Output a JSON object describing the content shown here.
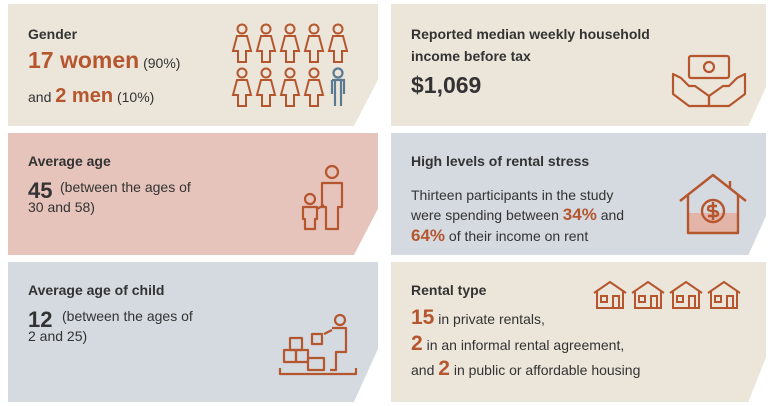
{
  "gender": {
    "label": "Gender",
    "women_count": "17 women",
    "women_pct": "(90%)",
    "and": "and",
    "men_count": "2 men",
    "men_pct": "(10%)"
  },
  "income": {
    "label_line1": "Reported median weekly household",
    "label_line2": "income before tax",
    "value": "$1,069"
  },
  "age": {
    "label": "Average age",
    "value": "45",
    "range_line1": "(between the ages of",
    "range_line2": "30 and 58)"
  },
  "stress": {
    "label": "High levels of rental stress",
    "line1": "Thirteen participants in the study",
    "line2_pre": "were spending between",
    "pct_low": "34%",
    "line2_post": "and",
    "pct_high": "64%",
    "line3_post": "of their income on rent"
  },
  "child_age": {
    "label": "Average age of child",
    "value": "12",
    "range_line1": "(between the ages of",
    "range_line2": "2 and 25)"
  },
  "rental": {
    "label": "Rental type",
    "n_private": "15",
    "private_text": "in private rentals,",
    "n_informal": "2",
    "informal_text": "in an informal rental agreement,",
    "and": "and",
    "n_public": "2",
    "public_text": "in public or affordable housing"
  },
  "colors": {
    "accent": "#b5562f",
    "man_icon": "#5a7a94",
    "beige": "#ece6da",
    "pink": "#e6c4bb",
    "blue": "#d4dae0"
  }
}
